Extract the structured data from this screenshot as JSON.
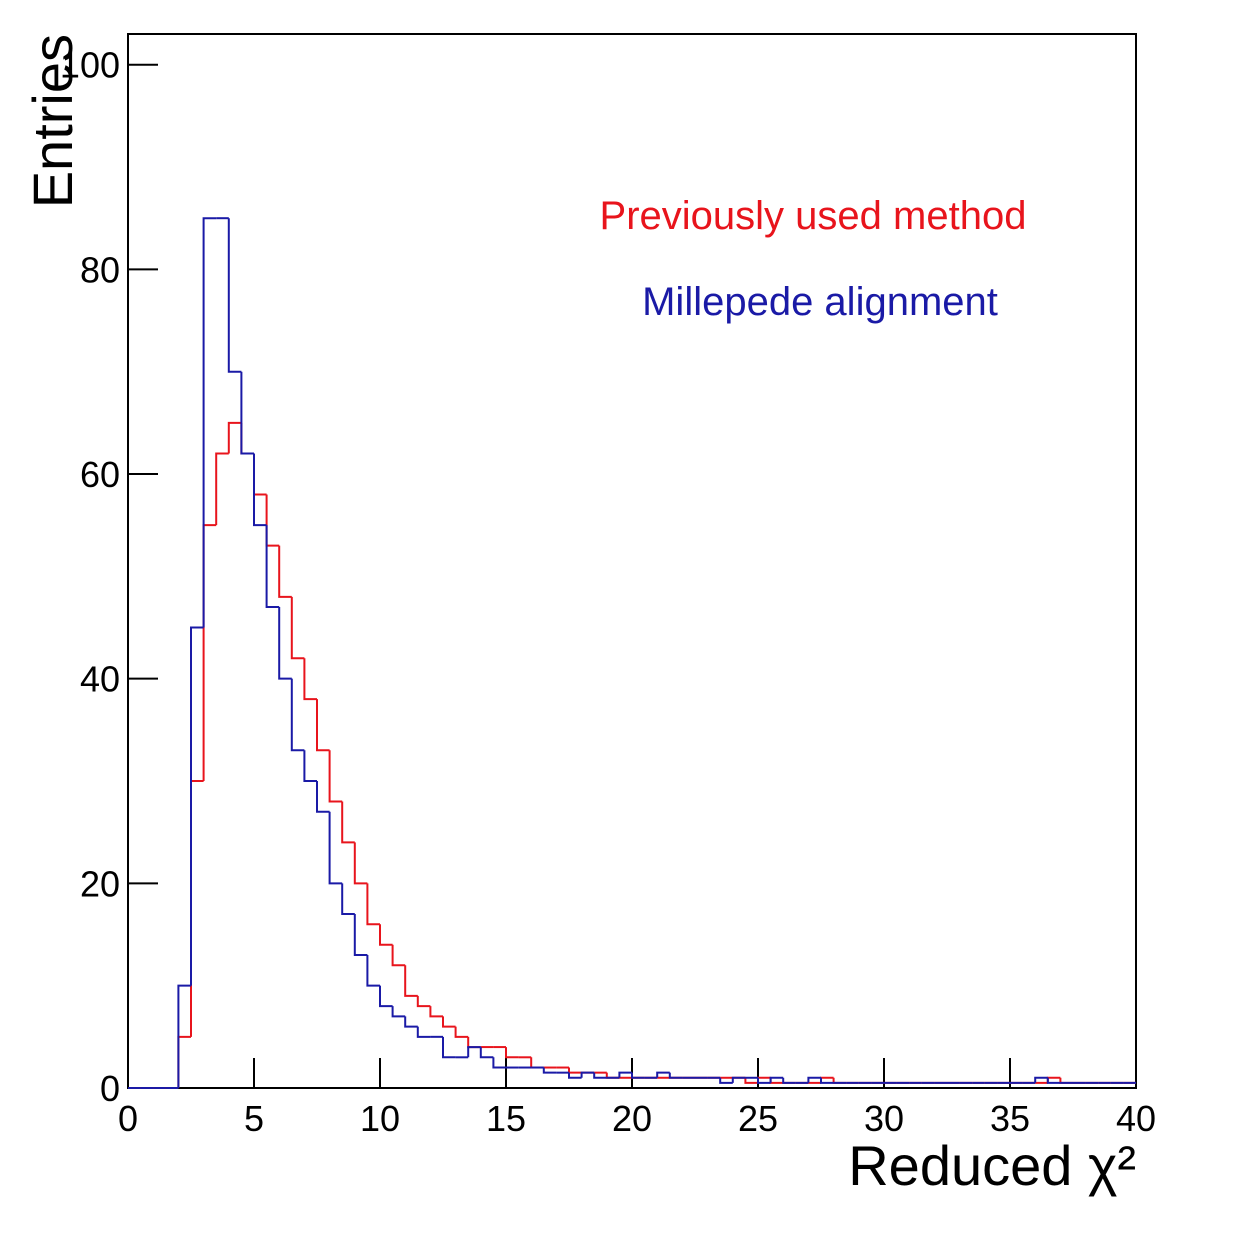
{
  "chart_data": {
    "type": "histogram",
    "xlabel": "Reduced χ²",
    "ylabel": "Entries",
    "bins": [
      0,
      0.5,
      1,
      1.5,
      2,
      2.5,
      3,
      3.5,
      4,
      4.5,
      5,
      5.5,
      6,
      6.5,
      7,
      7.5,
      8,
      8.5,
      9,
      9.5,
      10,
      10.5,
      11,
      11.5,
      12,
      12.5,
      13,
      13.5,
      14,
      14.5,
      15,
      15.5,
      16,
      16.5,
      17,
      17.5,
      18,
      18.5,
      19,
      19.5,
      20,
      20.5,
      21,
      21.5,
      22,
      22.5,
      23,
      23.5,
      24,
      24.5,
      25,
      25.5,
      26,
      26.5,
      27,
      27.5,
      28,
      28.5,
      29,
      29.5,
      30,
      30.5,
      31,
      31.5,
      32,
      32.5,
      33,
      33.5,
      34,
      34.5,
      35,
      35.5,
      36,
      36.5,
      37,
      37.5,
      38,
      38.5,
      39,
      39.5,
      40
    ],
    "series": [
      {
        "name": "Previously used method",
        "color": "#e8141c",
        "values": [
          0,
          0,
          0,
          0,
          5,
          30,
          55,
          62,
          65,
          62,
          58,
          53,
          48,
          42,
          38,
          33,
          28,
          24,
          20,
          16,
          14,
          12,
          9,
          8,
          7,
          6,
          5,
          4,
          4,
          4,
          3,
          3,
          2,
          2,
          2,
          1.5,
          1.5,
          1.5,
          1,
          1,
          1,
          1,
          1,
          1,
          1,
          1,
          1,
          1,
          1,
          0.5,
          1,
          0.5,
          0.5,
          0.5,
          0.5,
          1,
          0.5,
          0.5,
          0.5,
          0.5,
          0.5,
          0.5,
          0.5,
          0.5,
          0.5,
          0.5,
          0.5,
          0.5,
          0.5,
          0.5,
          0.5,
          0.5,
          0.5,
          1,
          0.5,
          0.5,
          0.5,
          0.5,
          0.5,
          0.5
        ]
      },
      {
        "name": "Millepede alignment",
        "color": "#1a1aa6",
        "values": [
          0,
          0,
          0,
          0,
          10,
          45,
          85,
          85,
          70,
          62,
          55,
          47,
          40,
          33,
          30,
          27,
          20,
          17,
          13,
          10,
          8,
          7,
          6,
          5,
          5,
          3,
          3,
          4,
          3,
          2,
          2,
          2,
          2,
          1.5,
          1.5,
          1,
          1.5,
          1,
          1,
          1.5,
          1,
          1,
          1.5,
          1,
          1,
          1,
          1,
          0.5,
          1,
          1,
          0.5,
          1,
          0.5,
          0.5,
          1,
          0.5,
          0.5,
          0.5,
          0.5,
          0.5,
          0.5,
          0.5,
          0.5,
          0.5,
          0.5,
          0.5,
          0.5,
          0.5,
          0.5,
          0.5,
          0.5,
          0.5,
          1,
          0.5,
          0.5,
          0.5,
          0.5,
          0.5,
          0.5,
          0.5
        ]
      }
    ],
    "xlim": [
      0,
      40
    ],
    "xticks": [
      0,
      5,
      10,
      15,
      20,
      25,
      30,
      35,
      40
    ],
    "ylim": [
      0,
      103
    ],
    "yticks": [
      0,
      20,
      40,
      60,
      80,
      100
    ]
  }
}
